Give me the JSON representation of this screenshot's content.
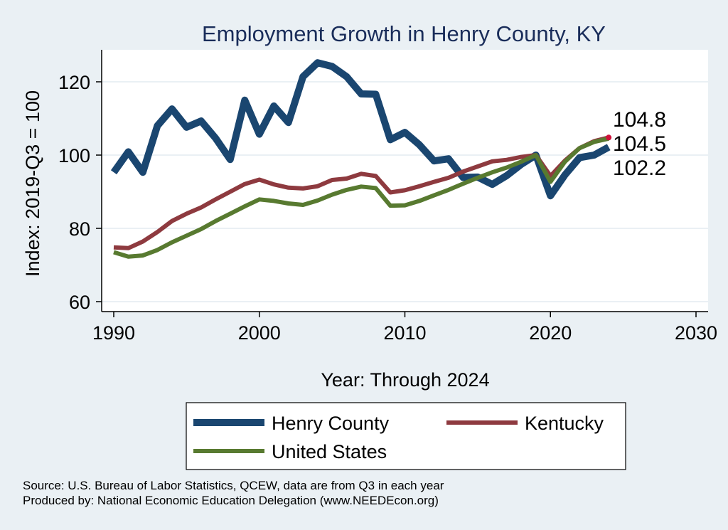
{
  "chart_data": {
    "type": "line",
    "title": "Employment Growth in Henry County, KY",
    "xlabel": "Year: Through 2024",
    "ylabel": "Index: 2019-Q3 = 100",
    "xlim": [
      1990,
      2030
    ],
    "ylim": [
      58,
      128
    ],
    "xticks": [
      1990,
      2000,
      2010,
      2020,
      2030
    ],
    "yticks": [
      60,
      80,
      100,
      120
    ],
    "grid": true,
    "legend_placement": "bottom",
    "x": [
      1990,
      1991,
      1992,
      1993,
      1994,
      1995,
      1996,
      1997,
      1998,
      1999,
      2000,
      2001,
      2002,
      2003,
      2004,
      2005,
      2006,
      2007,
      2008,
      2009,
      2010,
      2011,
      2012,
      2013,
      2014,
      2015,
      2016,
      2017,
      2018,
      2019,
      2020,
      2021,
      2022,
      2023,
      2024
    ],
    "series": [
      {
        "name": "Henry  County",
        "color": "#1a4670",
        "values": [
          95.3,
          100.9,
          95.3,
          108,
          112.6,
          107.6,
          109.3,
          104.6,
          98.8,
          115,
          105.7,
          113.4,
          108.9,
          121.4,
          125.2,
          124.2,
          121.4,
          116.7,
          116.6,
          104.2,
          106.2,
          102.8,
          98.4,
          99,
          93.9,
          94,
          92,
          94.4,
          97.5,
          100,
          88.9,
          94.6,
          99.3,
          100,
          102.2
        ]
      },
      {
        "name": "Kentucky",
        "color": "#8e3a3f",
        "values": [
          74.8,
          74.6,
          76.4,
          79,
          82,
          84,
          85.7,
          87.9,
          90,
          92.1,
          93.3,
          92,
          91.1,
          90.9,
          91.5,
          93.2,
          93.6,
          94.9,
          94.3,
          89.8,
          90.4,
          91.5,
          92.7,
          93.8,
          95.5,
          96.9,
          98.3,
          98.7,
          99.5,
          100,
          94.3,
          98.5,
          101.9,
          103.8,
          104.8
        ]
      },
      {
        "name": "United States",
        "color": "#587a30",
        "values": [
          73.5,
          72.3,
          72.6,
          74.1,
          76.2,
          78,
          79.8,
          82,
          84,
          86,
          87.9,
          87.5,
          86.8,
          86.4,
          87.6,
          89.2,
          90.5,
          91.4,
          91,
          86.2,
          86.3,
          87.5,
          89,
          90.5,
          92.2,
          93.8,
          95.3,
          96.6,
          98.2,
          100,
          92.7,
          98.2,
          101.9,
          103.6,
          104.5
        ]
      }
    ],
    "end_labels": [
      "104.8",
      "104.5",
      "102.2"
    ],
    "end_marker_color": "#d0103a"
  },
  "notes": {
    "source": "Source: U.S. Bureau of Labor Statistics, QCEW, data are from Q3 in each year",
    "produced": "Produced by: National Economic Education Delegation (www.NEEDEcon.org)"
  }
}
